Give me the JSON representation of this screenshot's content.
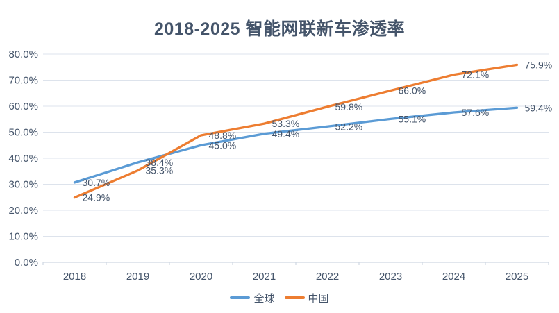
{
  "chart_data": {
    "type": "line",
    "title": "2018-2025 智能网联新车渗透率",
    "categories": [
      "2018",
      "2019",
      "2020",
      "2021",
      "2022",
      "2023",
      "2024",
      "2025"
    ],
    "series": [
      {
        "name": "全球",
        "color": "#5B9BD5",
        "values": [
          30.7,
          38.4,
          45.0,
          49.4,
          52.2,
          55.1,
          57.6,
          59.4
        ],
        "labels": [
          "30.7%",
          "38.4%",
          "45.0%",
          "49.4%",
          "52.2%",
          "55.1%",
          "57.6%",
          "59.4%"
        ]
      },
      {
        "name": "中国",
        "color": "#ED7D31",
        "values": [
          24.9,
          35.3,
          48.8,
          53.3,
          59.8,
          66.0,
          72.1,
          75.9
        ],
        "labels": [
          "24.9%",
          "35.3%",
          "48.8%",
          "53.3%",
          "59.8%",
          "66.0%",
          "72.1%",
          "75.9%"
        ]
      }
    ],
    "xlabel": "",
    "ylabel": "",
    "ylim": [
      0,
      80
    ],
    "ytick_step": 10,
    "ytick_labels": [
      "0.0%",
      "10.0%",
      "20.0%",
      "30.0%",
      "40.0%",
      "50.0%",
      "60.0%",
      "70.0%",
      "80.0%"
    ],
    "grid": true,
    "legend_position": "bottom"
  },
  "styles": {
    "title_color": "#44546A",
    "axis_text_color": "#44546A",
    "data_label_color": "#44546A",
    "gridline_color": "#DDE3EC",
    "axis_line_color": "#CFD7E2",
    "background": "#FFFFFF"
  }
}
